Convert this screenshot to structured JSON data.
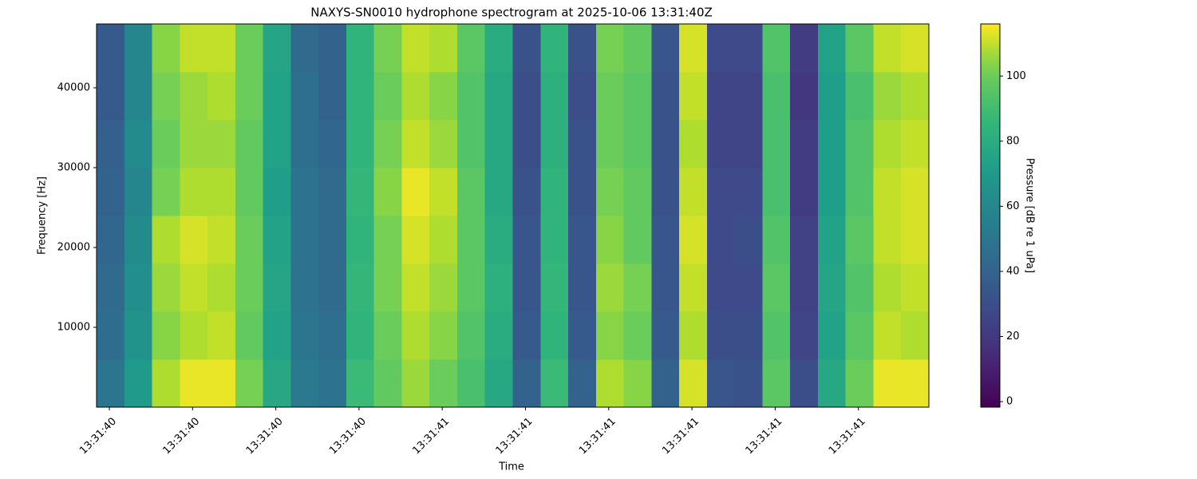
{
  "chart_data": {
    "type": "heatmap",
    "title": "NAXYS-SN0010 hydrophone spectrogram at 2025-10-06 13:31:40Z",
    "x_label": "Time",
    "y_label": "Frequency [Hz]",
    "colorbar_label": "Pressure [dB re 1 uPa]",
    "colormap": "viridis",
    "x": [
      40.402,
      40.452,
      40.502,
      40.552,
      40.602,
      40.652,
      40.702,
      40.752,
      40.802,
      40.852,
      40.902,
      40.952,
      41.002,
      41.052,
      41.102,
      41.152,
      41.202,
      41.252,
      41.302,
      41.352,
      41.402,
      41.452,
      41.502,
      41.552,
      41.602,
      41.652,
      41.702,
      41.752,
      41.802,
      41.852
    ],
    "y": [
      3000,
      9000,
      15000,
      21000,
      27000,
      33000,
      39000,
      45000
    ],
    "z": [
      [
        50,
        70,
        108,
        114,
        114,
        102,
        78,
        52,
        48,
        88,
        98,
        106,
        100,
        92,
        78,
        40,
        88,
        40,
        108,
        104,
        40,
        112,
        34,
        32,
        96,
        30,
        78,
        100,
        114,
        114
      ],
      [
        45,
        66,
        104,
        108,
        110,
        98,
        74,
        50,
        46,
        84,
        100,
        108,
        104,
        94,
        80,
        36,
        84,
        36,
        104,
        100,
        36,
        108,
        30,
        30,
        94,
        26,
        74,
        96,
        110,
        108
      ],
      [
        44,
        64,
        106,
        110,
        108,
        100,
        76,
        48,
        44,
        86,
        102,
        110,
        106,
        96,
        82,
        34,
        86,
        34,
        106,
        102,
        34,
        110,
        28,
        28,
        96,
        24,
        76,
        94,
        108,
        110
      ],
      [
        42,
        62,
        108,
        112,
        110,
        100,
        74,
        48,
        44,
        84,
        102,
        112,
        108,
        96,
        80,
        34,
        84,
        34,
        104,
        98,
        34,
        112,
        28,
        30,
        94,
        24,
        74,
        96,
        110,
        112
      ],
      [
        40,
        60,
        102,
        108,
        108,
        98,
        72,
        48,
        44,
        86,
        104,
        114,
        110,
        96,
        78,
        32,
        84,
        32,
        102,
        98,
        32,
        110,
        28,
        28,
        92,
        22,
        72,
        94,
        110,
        112
      ],
      [
        38,
        62,
        100,
        106,
        106,
        98,
        74,
        46,
        42,
        84,
        102,
        110,
        106,
        94,
        78,
        30,
        82,
        32,
        100,
        96,
        32,
        108,
        26,
        26,
        92,
        22,
        72,
        94,
        108,
        110
      ],
      [
        36,
        60,
        102,
        106,
        108,
        100,
        74,
        46,
        40,
        84,
        100,
        108,
        104,
        94,
        78,
        30,
        82,
        30,
        100,
        96,
        32,
        110,
        26,
        26,
        92,
        20,
        72,
        92,
        106,
        108
      ],
      [
        36,
        60,
        104,
        110,
        110,
        100,
        76,
        44,
        40,
        84,
        102,
        110,
        108,
        96,
        80,
        32,
        84,
        32,
        102,
        98,
        34,
        112,
        28,
        28,
        94,
        22,
        74,
        96,
        110,
        112
      ]
    ],
    "xlim": [
      40.377,
      41.877
    ],
    "xticks": [
      {
        "value": 40.4,
        "label": "13:31:40"
      },
      {
        "value": 40.55,
        "label": "13:31:40"
      },
      {
        "value": 40.7,
        "label": "13:31:40"
      },
      {
        "value": 40.85,
        "label": "13:31:40"
      },
      {
        "value": 41.0,
        "label": "13:31:41"
      },
      {
        "value": 41.15,
        "label": "13:31:41"
      },
      {
        "value": 41.3,
        "label": "13:31:41"
      },
      {
        "value": 41.45,
        "label": "13:31:41"
      },
      {
        "value": 41.6,
        "label": "13:31:41"
      },
      {
        "value": 41.75,
        "label": "13:31:41"
      }
    ],
    "ylim": [
      0,
      48000
    ],
    "yticks": [
      10000,
      20000,
      30000,
      40000
    ],
    "zlim": [
      -1.7,
      116
    ],
    "zticks": [
      0,
      20,
      40,
      60,
      80,
      100
    ]
  }
}
